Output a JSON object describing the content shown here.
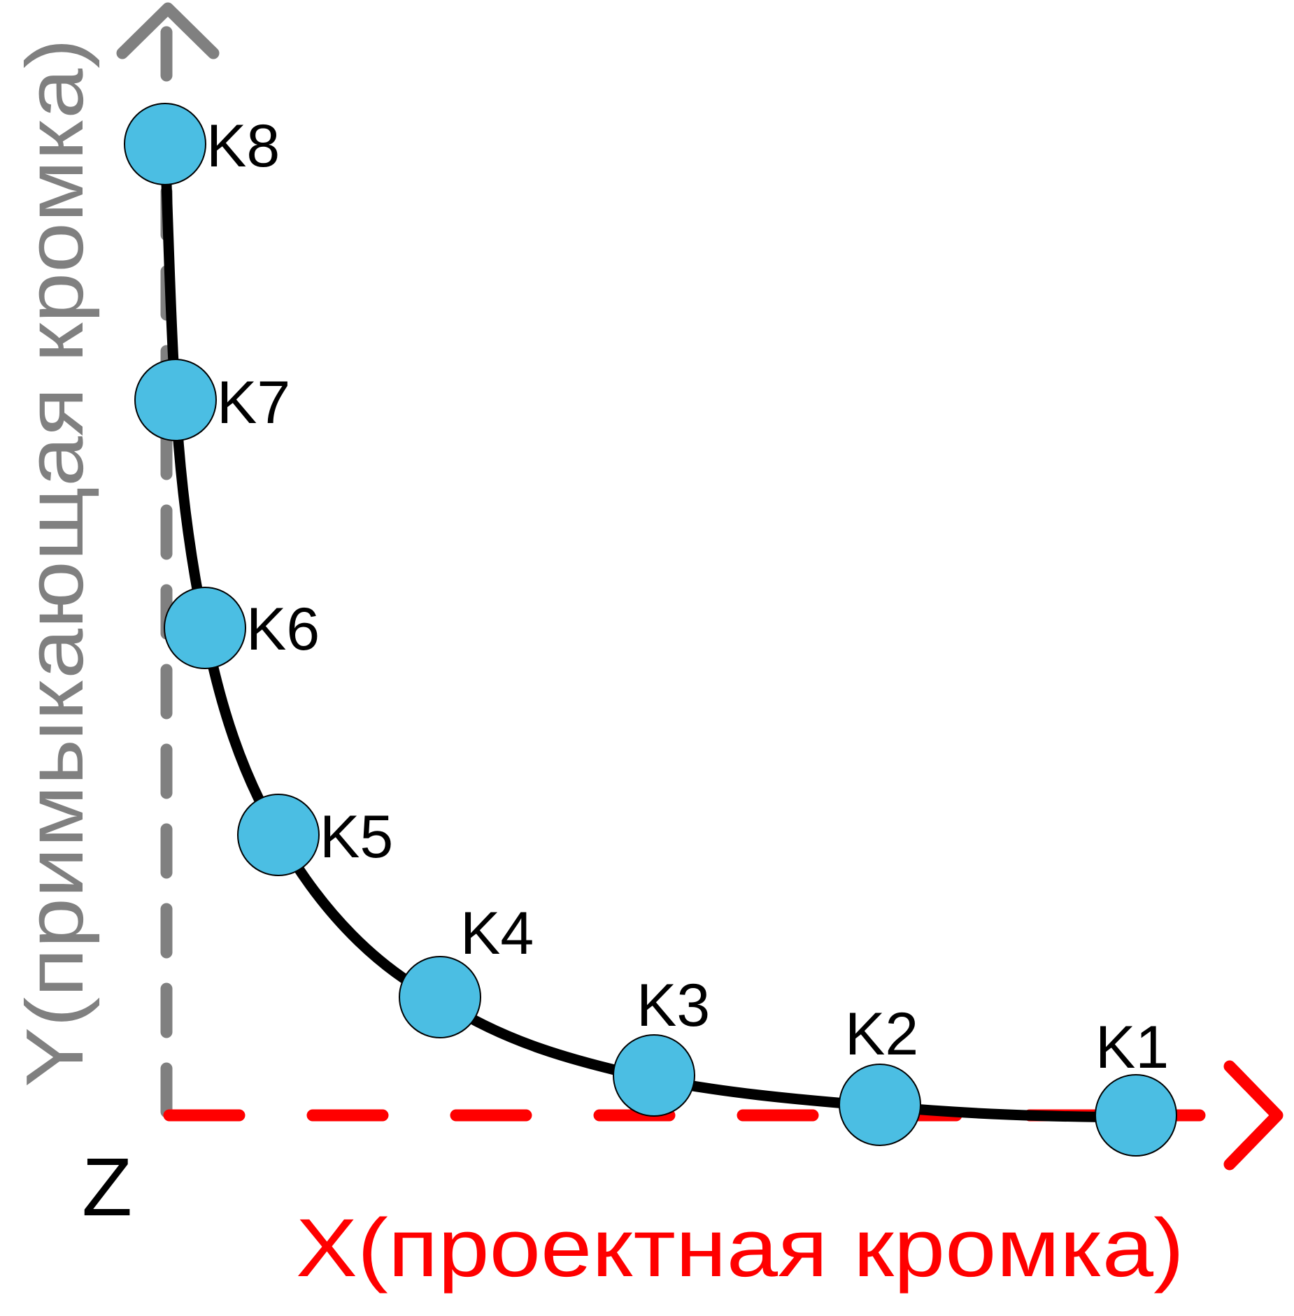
{
  "colors": {
    "x_axis": "#ff0000",
    "y_axis": "#808080",
    "curve": "#000000",
    "point_fill": "#4bbee3",
    "point_stroke": "#000000",
    "label": "#000000"
  },
  "axes": {
    "x_title": "X(проектная кромка)",
    "y_title": "Y(примыкающая кромка)",
    "origin_label": "Z"
  },
  "points": [
    {
      "label": "K1"
    },
    {
      "label": "K2"
    },
    {
      "label": "K3"
    },
    {
      "label": "K4"
    },
    {
      "label": "K5"
    },
    {
      "label": "K6"
    },
    {
      "label": "K7"
    },
    {
      "label": "K8"
    }
  ]
}
